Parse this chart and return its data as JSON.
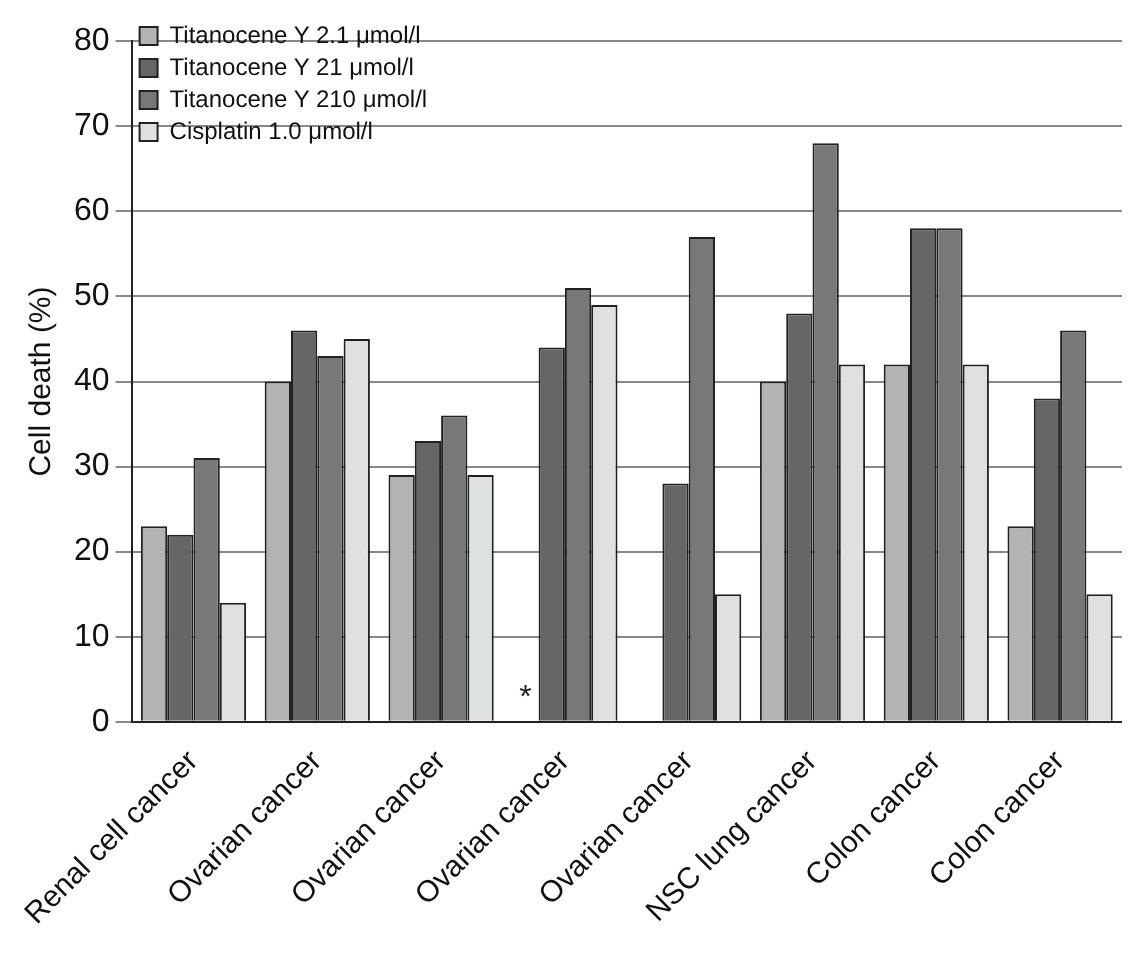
{
  "chart_data": {
    "type": "bar",
    "ylabel": "Cell death (%)",
    "categories": [
      "Renal cell cancer",
      "Ovarian cancer",
      "Ovarian cancer",
      "Ovarian cancer",
      "Ovarian cancer",
      "NSC lung cancer",
      "Colon cancer",
      "Colon cancer"
    ],
    "series": [
      {
        "name": "Titanocene Y 2.1 μmol/l",
        "color": "#b3b3b3",
        "values": [
          23,
          40,
          29,
          null,
          null,
          40,
          42,
          23
        ]
      },
      {
        "name": "Titanocene Y 21 μmol/l",
        "color": "#666666",
        "values": [
          22,
          46,
          33,
          44,
          28,
          48,
          58,
          38
        ]
      },
      {
        "name": "Titanocene Y 210 μmol/l",
        "color": "#787878",
        "values": [
          31,
          43,
          36,
          51,
          57,
          68,
          58,
          46
        ]
      },
      {
        "name": "Cisplatin 1.0 μmol/l",
        "color": "#dfe1e1",
        "values": [
          14,
          45,
          29,
          49,
          15,
          42,
          42,
          15
        ]
      }
    ],
    "annotations": [
      "*"
    ],
    "ylim": [
      0,
      80
    ],
    "yticks": [
      0,
      10,
      20,
      30,
      40,
      50,
      60,
      70,
      80
    ],
    "grid": "y",
    "legend": "top left"
  }
}
